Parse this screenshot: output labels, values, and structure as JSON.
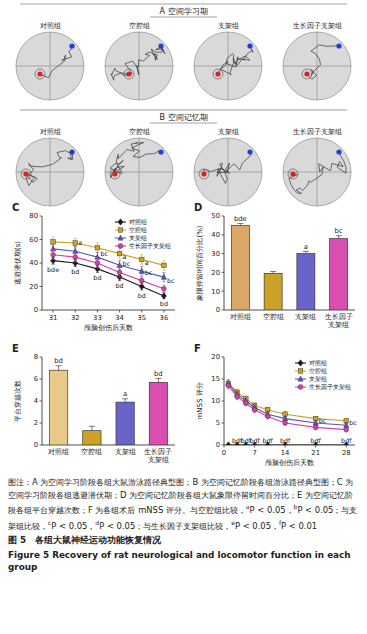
{
  "panels": [
    {
      "label": "A 空间学习期",
      "groups": [
        "对照组",
        "空腔组",
        "支架组",
        "生长因子支架组"
      ]
    },
    {
      "label": "B 空间记忆期",
      "groups": [
        "对照组",
        "空腔组",
        "支架组",
        "生长因子支架组"
      ]
    }
  ],
  "chart_data": [
    {
      "type": "line",
      "label": "C",
      "x": [
        31,
        32,
        33,
        34,
        35,
        36
      ],
      "xlim": [
        30.5,
        36.5
      ],
      "xticks": [
        31,
        32,
        33,
        34,
        35,
        36
      ],
      "ylim": [
        0,
        80
      ],
      "yticks": [
        0,
        20,
        40,
        60,
        80
      ],
      "x_label": "颅脑创伤后天数",
      "y_label": "逃避潜伏期(s)",
      "legend": "upper right",
      "series": [
        {
          "name": "对照组",
          "color": "#1a1a1a",
          "marker": "diamond",
          "values": [
            42,
            40,
            35,
            28,
            20,
            12
          ],
          "errors": [
            3,
            3,
            3,
            3,
            3,
            2.5
          ]
        },
        {
          "name": "空腔组",
          "color": "#c9a227",
          "marker": "square",
          "values": [
            58,
            57,
            53,
            48,
            43,
            38
          ],
          "errors": [
            4,
            4,
            4,
            4,
            4,
            4
          ]
        },
        {
          "name": "支架组",
          "color": "#5a55c0",
          "marker": "triangle",
          "values": [
            52,
            50,
            45,
            38,
            33,
            28
          ],
          "errors": [
            4,
            4,
            4,
            4,
            4,
            4
          ]
        },
        {
          "name": "生长因子支架组",
          "color": "#d63fa8",
          "marker": "circle",
          "values": [
            47,
            45,
            40,
            32,
            25,
            18
          ],
          "errors": [
            4,
            4,
            4,
            4,
            3,
            3
          ]
        }
      ],
      "annotations": [
        {
          "text": "bde",
          "x": 31,
          "series": 0
        },
        {
          "text": "bd",
          "x": 32,
          "series": 0
        },
        {
          "text": "a",
          "x": 32,
          "series": 2
        },
        {
          "text": "bd",
          "x": 33,
          "series": 0
        },
        {
          "text": "bc",
          "x": 33,
          "series": 3
        },
        {
          "text": "bd",
          "x": 34,
          "series": 0
        },
        {
          "text": "bc",
          "x": 34,
          "series": 3
        },
        {
          "text": "a",
          "x": 34,
          "series": 2
        },
        {
          "text": "bd",
          "x": 35,
          "series": 0
        },
        {
          "text": "bc",
          "x": 35,
          "series": 3
        },
        {
          "text": "a",
          "x": 35,
          "series": 2
        },
        {
          "text": "bd",
          "x": 36,
          "series": 0
        },
        {
          "text": "bc",
          "x": 36,
          "series": 3
        }
      ]
    },
    {
      "type": "bar",
      "label": "D",
      "categories": [
        "对照组",
        "空腔组",
        "支架组",
        "生长因子支架组"
      ],
      "values": [
        45,
        19.5,
        30,
        38
      ],
      "errors": [
        1,
        1,
        1.2,
        1.5
      ],
      "colors": [
        "#d9a866",
        "#c9a227",
        "#6a64c8",
        "#d94fb0"
      ],
      "ylim": [
        0,
        50
      ],
      "yticks": [
        0,
        10,
        20,
        30,
        40,
        50
      ],
      "y_label": "象限停留时间百分比(%)",
      "annotations": [
        {
          "text": "bde",
          "category": 0
        },
        {
          "text": "a",
          "category": 2
        },
        {
          "text": "bc",
          "category": 3
        }
      ]
    },
    {
      "type": "bar",
      "label": "E",
      "categories": [
        "对照组",
        "空腔组",
        "支架组",
        "生长因子支架组"
      ],
      "values": [
        6.8,
        1.3,
        3.9,
        5.7
      ],
      "errors": [
        0.4,
        0.4,
        0.3,
        0.35
      ],
      "colors": [
        "#e8c98a",
        "#c9a227",
        "#6a64c8",
        "#d94fb0"
      ],
      "ylim": [
        0,
        8
      ],
      "yticks": [
        0,
        2,
        4,
        6,
        8
      ],
      "y_label": "平台穿越次数",
      "annotations": [
        {
          "text": "bd",
          "category": 0
        },
        {
          "text": "a",
          "category": 2
        },
        {
          "text": "bd",
          "category": 3
        }
      ]
    },
    {
      "type": "line",
      "label": "F",
      "x": [
        1,
        3,
        5,
        7,
        10,
        14,
        21,
        28
      ],
      "xlim": [
        0,
        30
      ],
      "xticks": [
        0,
        7,
        14,
        21,
        28
      ],
      "ylim": [
        0,
        20
      ],
      "yticks": [
        0,
        5,
        10,
        15,
        20
      ],
      "x_label": "颅脑创伤后天数",
      "y_label": "mNSS 评分",
      "legend": "upper right",
      "series": [
        {
          "name": "对照组",
          "color": "#1a1a1a",
          "marker": "diamond",
          "values": [
            0,
            0,
            0,
            0,
            0,
            0,
            0,
            0
          ],
          "errors": [
            0,
            0,
            0,
            0,
            0,
            0,
            0,
            0
          ]
        },
        {
          "name": "空腔组",
          "color": "#c9a227",
          "marker": "square",
          "values": [
            14,
            12,
            10.5,
            9,
            8,
            7,
            6,
            5.5
          ],
          "errors": [
            0.8,
            0.7,
            0.7,
            0.6,
            0.6,
            0.6,
            0.5,
            0.5
          ]
        },
        {
          "name": "支架组",
          "color": "#5a55c0",
          "marker": "triangle",
          "values": [
            14,
            11.5,
            10,
            8.5,
            7,
            6,
            5,
            4.5
          ],
          "errors": [
            0.8,
            0.7,
            0.7,
            0.6,
            0.6,
            0.5,
            0.5,
            0.5
          ]
        },
        {
          "name": "生长因子支架组",
          "color": "#d63fa8",
          "marker": "circle",
          "values": [
            13.5,
            11,
            9.5,
            8,
            6.5,
            5,
            4,
            3.5
          ],
          "errors": [
            0.8,
            0.7,
            0.6,
            0.6,
            0.5,
            0.5,
            0.5,
            0.5
          ]
        }
      ],
      "annotations": [
        {
          "text": "bdf",
          "x": 3,
          "series": 0
        },
        {
          "text": "bdf",
          "x": 5,
          "series": 0
        },
        {
          "text": "bdf",
          "x": 7,
          "series": 0
        },
        {
          "text": "bdf",
          "x": 10,
          "series": 0
        },
        {
          "text": "bdf",
          "x": 14,
          "series": 0
        },
        {
          "text": "bdf",
          "x": 21,
          "series": 0
        },
        {
          "text": "bdf",
          "x": 28,
          "series": 0
        },
        {
          "text": "bc",
          "x": 21,
          "series": 3
        },
        {
          "text": "bc",
          "x": 28,
          "series": 3
        }
      ]
    }
  ],
  "caption": {
    "note": "图注：A 为空间学习阶段各组大鼠游泳路径典型图；B 为空间记忆阶段各组游泳路径典型图；C 为空间学习阶段各组逃避潜伏期；D 为空间记忆阶段各组大鼠象限停留时间百分比；E 为空间记忆阶段各组平台穿越次数；F 为各组术后 mNSS 评分。与空腔组比较，aP < 0.05，bP < 0.05；与支架组比较，cP < 0.05，dP < 0.05；与生长因子支架组比较，eP < 0.05，fP < 0.01",
    "title": "图 5　各组大鼠神经运动功能恢复情况",
    "title_en": "Figure 5 Recovery of rat neurological and locomotor function in each group"
  }
}
